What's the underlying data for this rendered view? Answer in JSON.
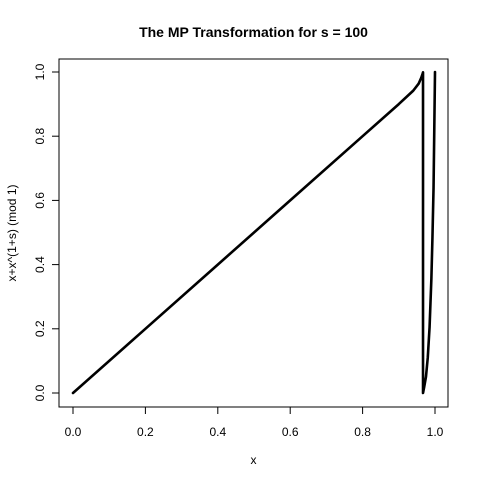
{
  "chart_data": {
    "type": "line",
    "title": "The MP Transformation for s = 100",
    "xlabel": "x",
    "ylabel": "x+x^(1+s) (mod 1)",
    "s": 100,
    "xlim": [
      0,
      1
    ],
    "ylim": [
      0,
      1
    ],
    "x_ticks": [
      "0.0",
      "0.2",
      "0.4",
      "0.6",
      "0.8",
      "1.0"
    ],
    "y_ticks": [
      "0.0",
      "0.2",
      "0.4",
      "0.6",
      "0.8",
      "1.0"
    ],
    "grid": false,
    "legend": "none",
    "series": [
      {
        "points": [
          [
            0,
            0
          ],
          [
            0.2,
            0.2
          ],
          [
            0.4,
            0.4
          ],
          [
            0.6,
            0.6
          ],
          [
            0.8,
            0.8
          ],
          [
            0.9,
            0.9
          ],
          [
            0.94,
            0.942
          ],
          [
            0.955,
            0.964
          ],
          [
            0.962,
            0.982
          ],
          [
            0.966,
            0.995
          ],
          [
            0.9669,
            0.999
          ],
          [
            0.9669,
            0.0
          ],
          [
            0.97,
            0.018
          ],
          [
            0.975,
            0.05
          ],
          [
            0.98,
            0.11
          ],
          [
            0.985,
            0.205
          ],
          [
            0.99,
            0.356
          ],
          [
            0.993,
            0.487
          ],
          [
            0.996,
            0.64
          ],
          [
            0.998,
            0.82
          ],
          [
            1.0,
            1.0
          ]
        ]
      }
    ]
  }
}
